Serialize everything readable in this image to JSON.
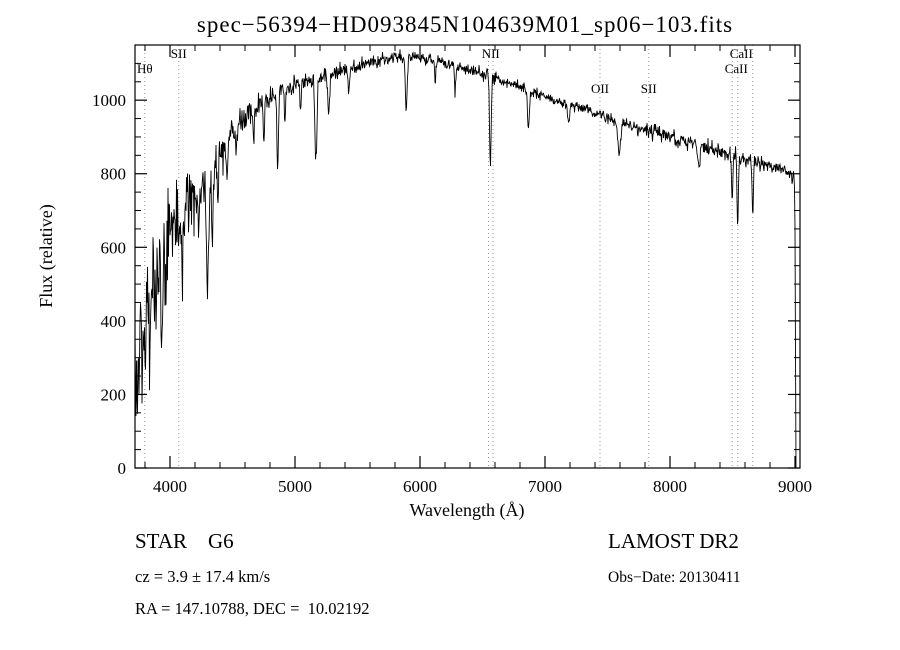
{
  "chart_data": {
    "type": "line",
    "title": "spec−56394−HD093845N104639M01_sp06−103.fits",
    "xlabel": "Wavelength (Å)",
    "ylabel": "Flux (relative)",
    "xlim": [
      3720,
      9040
    ],
    "ylim": [
      0,
      1150
    ],
    "xticks": [
      4000,
      5000,
      6000,
      7000,
      8000,
      9000
    ],
    "yticks": [
      0,
      200,
      400,
      600,
      800,
      1000
    ],
    "x_minor_step": 200,
    "y_minor_step": 50,
    "grid": false,
    "legend": "none",
    "sample_step": 4,
    "continuum": [
      [
        3720,
        350
      ],
      [
        3740,
        300
      ],
      [
        3760,
        380
      ],
      [
        3780,
        330
      ],
      [
        3800,
        420
      ],
      [
        3830,
        460
      ],
      [
        3860,
        520
      ],
      [
        3890,
        500
      ],
      [
        3920,
        560
      ],
      [
        3950,
        590
      ],
      [
        3980,
        630
      ],
      [
        4010,
        650
      ],
      [
        4060,
        690
      ],
      [
        4120,
        710
      ],
      [
        4180,
        745
      ],
      [
        4240,
        765
      ],
      [
        4310,
        780
      ],
      [
        4360,
        830
      ],
      [
        4420,
        865
      ],
      [
        4480,
        905
      ],
      [
        4550,
        935
      ],
      [
        4620,
        960
      ],
      [
        4700,
        985
      ],
      [
        4800,
        1010
      ],
      [
        4900,
        1030
      ],
      [
        5000,
        1042
      ],
      [
        5100,
        1052
      ],
      [
        5200,
        1062
      ],
      [
        5300,
        1072
      ],
      [
        5400,
        1080
      ],
      [
        5500,
        1090
      ],
      [
        5600,
        1098
      ],
      [
        5700,
        1108
      ],
      [
        5800,
        1118
      ],
      [
        5900,
        1122
      ],
      [
        6000,
        1118
      ],
      [
        6100,
        1112
      ],
      [
        6200,
        1103
      ],
      [
        6300,
        1092
      ],
      [
        6400,
        1082
      ],
      [
        6500,
        1072
      ],
      [
        6600,
        1058
      ],
      [
        6700,
        1048
      ],
      [
        6800,
        1038
      ],
      [
        6900,
        1022
      ],
      [
        7000,
        1008
      ],
      [
        7100,
        996
      ],
      [
        7200,
        986
      ],
      [
        7300,
        976
      ],
      [
        7400,
        966
      ],
      [
        7500,
        952
      ],
      [
        7600,
        942
      ],
      [
        7700,
        930
      ],
      [
        7800,
        920
      ],
      [
        7900,
        910
      ],
      [
        8000,
        900
      ],
      [
        8100,
        890
      ],
      [
        8200,
        880
      ],
      [
        8300,
        870
      ],
      [
        8400,
        861
      ],
      [
        8500,
        851
      ],
      [
        8600,
        841
      ],
      [
        8700,
        830
      ],
      [
        8800,
        820
      ],
      [
        8900,
        812
      ],
      [
        8960,
        800
      ],
      [
        8995,
        788
      ],
      [
        9000,
        650
      ],
      [
        9004,
        300
      ],
      [
        9008,
        0
      ]
    ],
    "absorption_features": [
      {
        "wl": 3750,
        "depth": 120,
        "width": 6
      },
      {
        "wl": 3798,
        "depth": 150,
        "width": 5
      },
      {
        "wl": 3835,
        "depth": 130,
        "width": 5
      },
      {
        "wl": 3889,
        "depth": 140,
        "width": 5
      },
      {
        "wl": 3933,
        "depth": 220,
        "width": 7
      },
      {
        "wl": 3968,
        "depth": 200,
        "width": 7
      },
      {
        "wl": 4101,
        "depth": 170,
        "width": 6
      },
      {
        "wl": 4227,
        "depth": 120,
        "width": 5
      },
      {
        "wl": 4300,
        "depth": 280,
        "width": 9
      },
      {
        "wl": 4340,
        "depth": 160,
        "width": 6
      },
      {
        "wl": 4383,
        "depth": 100,
        "width": 5
      },
      {
        "wl": 4455,
        "depth": 80,
        "width": 5
      },
      {
        "wl": 4531,
        "depth": 70,
        "width": 5
      },
      {
        "wl": 4668,
        "depth": 90,
        "width": 5
      },
      {
        "wl": 4750,
        "depth": 110,
        "width": 5
      },
      {
        "wl": 4861,
        "depth": 215,
        "width": 6
      },
      {
        "wl": 4920,
        "depth": 80,
        "width": 5
      },
      {
        "wl": 5045,
        "depth": 70,
        "width": 5
      },
      {
        "wl": 5167,
        "depth": 230,
        "width": 8
      },
      {
        "wl": 5270,
        "depth": 110,
        "width": 7
      },
      {
        "wl": 5430,
        "depth": 70,
        "width": 5
      },
      {
        "wl": 5890,
        "depth": 165,
        "width": 7
      },
      {
        "wl": 6122,
        "depth": 60,
        "width": 5
      },
      {
        "wl": 6280,
        "depth": 70,
        "width": 5
      },
      {
        "wl": 6563,
        "depth": 260,
        "width": 6
      },
      {
        "wl": 6867,
        "depth": 95,
        "width": 8
      },
      {
        "wl": 7190,
        "depth": 60,
        "width": 8
      },
      {
        "wl": 7594,
        "depth": 90,
        "width": 12
      },
      {
        "wl": 8230,
        "depth": 60,
        "width": 8
      },
      {
        "wl": 8498,
        "depth": 120,
        "width": 5
      },
      {
        "wl": 8542,
        "depth": 180,
        "width": 5
      },
      {
        "wl": 8662,
        "depth": 155,
        "width": 5
      }
    ],
    "noise_profile": [
      [
        3720,
        85
      ],
      [
        3900,
        70
      ],
      [
        4050,
        50
      ],
      [
        4250,
        35
      ],
      [
        4500,
        22
      ],
      [
        4800,
        15
      ],
      [
        5100,
        12
      ],
      [
        5500,
        10
      ],
      [
        6000,
        9
      ],
      [
        6500,
        8
      ],
      [
        7000,
        8
      ],
      [
        7600,
        9
      ],
      [
        8200,
        10
      ],
      [
        8700,
        11
      ],
      [
        9000,
        8
      ]
    ],
    "dotted_lines": [
      3798,
      4070,
      6548,
      6584,
      7440,
      7830,
      8498,
      8542,
      8662
    ],
    "annotations": [
      {
        "label": "Hθ",
        "wl": 3798,
        "row": 2
      },
      {
        "label": "SII",
        "wl": 4070,
        "row": 1
      },
      {
        "label": "NII",
        "wl": 6566,
        "row": 1
      },
      {
        "label": "OII",
        "wl": 7440,
        "row": 3
      },
      {
        "label": "SII",
        "wl": 7830,
        "row": 3
      },
      {
        "label": "CaII",
        "wl": 8570,
        "row": 1
      },
      {
        "label": "CaII",
        "wl": 8530,
        "row": 2
      }
    ]
  },
  "footer": {
    "class_label": "STAR    G6",
    "survey": "LAMOST DR2",
    "cz": "cz = 3.9 ± 17.4 km/s",
    "obs_date": "Obs−Date: 20130411",
    "radec": "RA = 147.10788, DEC =  10.02192"
  }
}
